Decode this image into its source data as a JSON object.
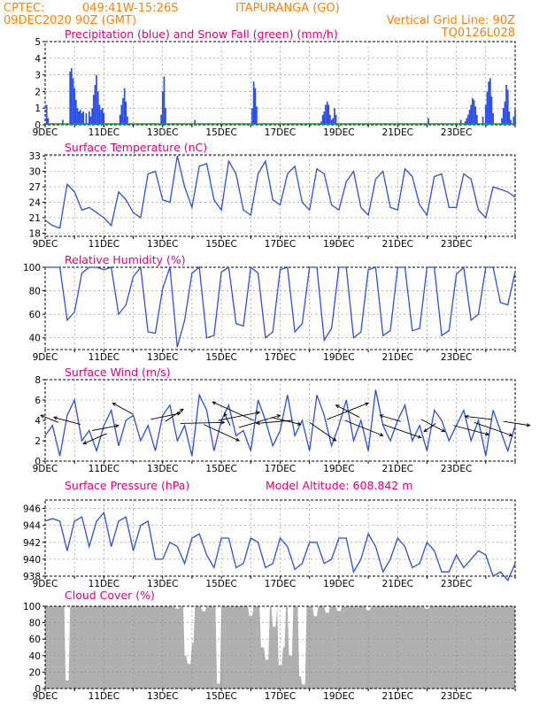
{
  "header": {
    "source": "CPTEC:",
    "coords": "049:41W-15:26S",
    "location": "ITAPURANGA (GO)",
    "run": "09DEC2020 90Z (GMT)",
    "grid_note": "Vertical Grid Line: 90Z",
    "model_code": "TQ0126L028"
  },
  "colors": {
    "header": "#ff8000",
    "title": "#e0007a",
    "line": "#2a4ee6",
    "snow": "#1aa01a",
    "cloud": "#b0b0b0",
    "arrow": "#000000"
  },
  "x_labels": [
    "9DEC",
    "11DEC",
    "13DEC",
    "15DEC",
    "17DEC",
    "19DEC",
    "21DEC",
    "23DEC"
  ],
  "chart_data": [
    {
      "type": "bar",
      "title": "Precipitation (blue) and Snow Fall (green) (mm/h)",
      "ylim": [
        0,
        5
      ],
      "yticks": [
        "0",
        "1",
        "2",
        "3",
        "4",
        "5"
      ],
      "x_days": [
        0,
        16
      ],
      "series": [
        {
          "name": "Precipitation",
          "color": "#2a4ee6",
          "points": [
            [
              0.05,
              1.2
            ],
            [
              0.1,
              0.4
            ],
            [
              0.6,
              0.3
            ],
            [
              0.85,
              3.2
            ],
            [
              0.9,
              3.4
            ],
            [
              0.95,
              2.8
            ],
            [
              1.0,
              2.2
            ],
            [
              1.05,
              1.5
            ],
            [
              1.1,
              1.0
            ],
            [
              1.15,
              0.8
            ],
            [
              1.2,
              0.9
            ],
            [
              1.25,
              0.7
            ],
            [
              1.3,
              0.8
            ],
            [
              1.4,
              0.7
            ],
            [
              1.5,
              0.8
            ],
            [
              1.55,
              0.5
            ],
            [
              1.6,
              1.0
            ],
            [
              1.65,
              1.8
            ],
            [
              1.7,
              2.4
            ],
            [
              1.75,
              3.0
            ],
            [
              1.8,
              2.0
            ],
            [
              1.85,
              1.2
            ],
            [
              1.9,
              0.9
            ],
            [
              1.95,
              1.0
            ],
            [
              2.0,
              0.7
            ],
            [
              2.55,
              0.6
            ],
            [
              2.6,
              1.2
            ],
            [
              2.65,
              1.6
            ],
            [
              2.7,
              2.2
            ],
            [
              2.75,
              1.4
            ],
            [
              2.8,
              0.5
            ],
            [
              3.95,
              0.6
            ],
            [
              4.0,
              2.0
            ],
            [
              4.05,
              2.9
            ],
            [
              4.1,
              1.0
            ],
            [
              5.1,
              0.3
            ],
            [
              7.05,
              1.0
            ],
            [
              7.1,
              2.6
            ],
            [
              7.15,
              2.2
            ],
            [
              7.2,
              1.1
            ],
            [
              9.4,
              0.2
            ],
            [
              9.45,
              0.6
            ],
            [
              9.5,
              0.8
            ],
            [
              9.55,
              1.2
            ],
            [
              9.6,
              1.4
            ],
            [
              9.65,
              1.2
            ],
            [
              9.7,
              0.6
            ],
            [
              9.75,
              0.3
            ],
            [
              9.8,
              0.4
            ],
            [
              9.85,
              1.0
            ],
            [
              9.9,
              0.6
            ],
            [
              13.05,
              0.4
            ],
            [
              14.15,
              0.3
            ],
            [
              14.3,
              0.2
            ],
            [
              14.35,
              0.4
            ],
            [
              14.4,
              0.6
            ],
            [
              14.45,
              0.9
            ],
            [
              14.5,
              1.2
            ],
            [
              14.55,
              1.6
            ],
            [
              14.6,
              1.5
            ],
            [
              14.65,
              1.1
            ],
            [
              14.7,
              0.6
            ],
            [
              14.9,
              0.5
            ],
            [
              15.0,
              1.2
            ],
            [
              15.05,
              2.0
            ],
            [
              15.1,
              2.6
            ],
            [
              15.15,
              2.8
            ],
            [
              15.2,
              1.7
            ],
            [
              15.25,
              0.7
            ],
            [
              15.55,
              0.4
            ],
            [
              15.6,
              1.0
            ],
            [
              15.65,
              1.4
            ],
            [
              15.7,
              2.4
            ],
            [
              15.75,
              2.1
            ],
            [
              15.8,
              0.8
            ],
            [
              15.85,
              0.3
            ],
            [
              15.95,
              0.5
            ],
            [
              16.0,
              0.9
            ]
          ]
        },
        {
          "name": "Snow Fall",
          "color": "#1aa01a",
          "points": [
            [
              0,
              0
            ],
            [
              16,
              0
            ]
          ]
        }
      ]
    },
    {
      "type": "line",
      "title": "Surface Temperature (nC)",
      "ylim": [
        17.4,
        33.2
      ],
      "yticks": [
        "18",
        "21",
        "24",
        "27",
        "30",
        "33"
      ],
      "ytick_values": [
        18,
        21,
        24,
        27,
        30,
        33
      ],
      "x": [
        0,
        0.25,
        0.5,
        0.75,
        1,
        1.25,
        1.5,
        1.75,
        2,
        2.25,
        2.5,
        2.75,
        3,
        3.25,
        3.5,
        3.75,
        4,
        4.25,
        4.5,
        4.75,
        5,
        5.25,
        5.5,
        5.75,
        6,
        6.25,
        6.5,
        6.75,
        7,
        7.25,
        7.5,
        7.75,
        8,
        8.25,
        8.5,
        8.75,
        9,
        9.25,
        9.5,
        9.75,
        10,
        10.25,
        10.5,
        10.75,
        11,
        11.25,
        11.5,
        11.75,
        12,
        12.25,
        12.5,
        12.75,
        13,
        13.25,
        13.5,
        13.75,
        14,
        14.25,
        14.5,
        14.75,
        15,
        15.25,
        15.5,
        15.75,
        16
      ],
      "values": [
        20.5,
        19.5,
        19.0,
        27.5,
        26.0,
        22.5,
        23.0,
        22.0,
        21.0,
        19.5,
        26.0,
        24.5,
        22.0,
        21.0,
        29.5,
        30.0,
        24.5,
        24.0,
        33.0,
        27.0,
        23.0,
        31.0,
        31.5,
        24.5,
        22.5,
        32.0,
        29.5,
        22.5,
        21.5,
        29.5,
        32.0,
        24.5,
        23.5,
        29.5,
        31.0,
        24.0,
        22.5,
        30.5,
        29.5,
        23.5,
        22.5,
        28.0,
        30.0,
        23.0,
        21.5,
        28.5,
        30.0,
        23.0,
        22.5,
        30.5,
        29.0,
        23.5,
        21.5,
        29.0,
        29.5,
        23.0,
        23.0,
        29.5,
        28.5,
        22.5,
        21.0,
        27.0,
        26.5,
        26.0,
        25.0
      ]
    },
    {
      "type": "line",
      "title": "Relative Humidity (%)",
      "ylim": [
        30,
        100
      ],
      "yticks": [
        "40",
        "60",
        "80",
        "100"
      ],
      "ytick_values": [
        40,
        60,
        80,
        100
      ],
      "x": [
        0,
        0.25,
        0.5,
        0.75,
        1,
        1.25,
        1.5,
        1.75,
        2,
        2.25,
        2.5,
        2.75,
        3,
        3.25,
        3.5,
        3.75,
        4,
        4.25,
        4.5,
        4.75,
        5,
        5.25,
        5.5,
        5.75,
        6,
        6.25,
        6.5,
        6.75,
        7,
        7.25,
        7.5,
        7.75,
        8,
        8.25,
        8.5,
        8.75,
        9,
        9.25,
        9.5,
        9.75,
        10,
        10.25,
        10.5,
        10.75,
        11,
        11.25,
        11.5,
        11.75,
        12,
        12.25,
        12.5,
        12.75,
        13,
        13.25,
        13.5,
        13.75,
        14,
        14.25,
        14.5,
        14.75,
        15,
        15.25,
        15.5,
        15.75,
        16
      ],
      "values": [
        100,
        100,
        100,
        55,
        62,
        95,
        100,
        100,
        98,
        100,
        60,
        68,
        92,
        100,
        45,
        44,
        82,
        100,
        32,
        55,
        95,
        100,
        40,
        42,
        96,
        100,
        52,
        50,
        100,
        95,
        40,
        45,
        98,
        100,
        45,
        52,
        100,
        100,
        38,
        48,
        100,
        100,
        40,
        45,
        98,
        100,
        42,
        46,
        100,
        100,
        46,
        48,
        100,
        100,
        42,
        46,
        94,
        100,
        55,
        60,
        100,
        100,
        70,
        68,
        96
      ]
    },
    {
      "type": "line",
      "title": "Surface Wind (m/s)",
      "ylim": [
        0,
        8
      ],
      "yticks": [
        "0",
        "2",
        "4",
        "6",
        "8"
      ],
      "ytick_values": [
        0,
        2,
        4,
        6,
        8
      ],
      "x": [
        0,
        0.25,
        0.5,
        0.75,
        1,
        1.25,
        1.5,
        1.75,
        2,
        2.25,
        2.5,
        2.75,
        3,
        3.25,
        3.5,
        3.75,
        4,
        4.25,
        4.5,
        4.75,
        5,
        5.25,
        5.5,
        5.75,
        6,
        6.25,
        6.5,
        6.75,
        7,
        7.25,
        7.5,
        7.75,
        8,
        8.25,
        8.5,
        8.75,
        9,
        9.25,
        9.5,
        9.75,
        10,
        10.25,
        10.5,
        10.75,
        11,
        11.25,
        11.5,
        11.75,
        12,
        12.25,
        12.5,
        12.75,
        13,
        13.25,
        13.5,
        13.75,
        14,
        14.25,
        14.5,
        14.75,
        15,
        15.25,
        15.5,
        15.75,
        16
      ],
      "values": [
        2.5,
        3.5,
        0.5,
        4.5,
        6.0,
        2.0,
        3.0,
        1.0,
        3.5,
        5.0,
        1.5,
        4.0,
        4.5,
        2.0,
        3.5,
        1.0,
        4.5,
        5.5,
        2.0,
        3.5,
        0.5,
        6.5,
        5.0,
        1.0,
        4.0,
        5.5,
        2.5,
        3.0,
        1.0,
        6.0,
        4.0,
        1.5,
        3.0,
        6.5,
        2.5,
        4.0,
        1.0,
        6.5,
        4.5,
        1.5,
        3.5,
        6.0,
        2.0,
        4.0,
        1.0,
        7.0,
        3.5,
        2.0,
        4.0,
        5.5,
        2.0,
        3.5,
        1.0,
        5.0,
        4.0,
        2.0,
        3.5,
        5.0,
        2.0,
        4.0,
        0.5,
        5.0,
        3.0,
        1.0,
        3.5
      ],
      "arrows": [
        [
          0.45,
          3.8,
          -0.6,
          0.7
        ],
        [
          1.2,
          3.6,
          -0.9,
          0.7
        ],
        [
          1.6,
          3.0,
          0.9,
          0.5
        ],
        [
          2.1,
          2.7,
          -0.8,
          -1.0
        ],
        [
          3.0,
          4.6,
          -0.7,
          1.1
        ],
        [
          3.6,
          4.1,
          1.0,
          0.6
        ],
        [
          4.1,
          3.9,
          0.6,
          1.2
        ],
        [
          4.6,
          3.7,
          1.5,
          0.1
        ],
        [
          5.4,
          3.6,
          1.2,
          -1.6
        ],
        [
          5.9,
          4.0,
          1.4,
          0.8
        ],
        [
          6.3,
          3.5,
          -0.2,
          1.2
        ],
        [
          6.6,
          3.3,
          1.4,
          1.2
        ],
        [
          7.1,
          4.0,
          -1.4,
          1.8
        ],
        [
          7.7,
          4.3,
          1.0,
          -0.7
        ],
        [
          8.4,
          4.0,
          -1.2,
          -0.3
        ],
        [
          9.0,
          3.8,
          0.9,
          -1.8
        ],
        [
          9.6,
          4.1,
          1.4,
          1.6
        ],
        [
          10.2,
          4.0,
          1.3,
          -1.5
        ],
        [
          10.7,
          4.3,
          -0.8,
          1.2
        ],
        [
          11.5,
          3.6,
          1.3,
          -1.3
        ],
        [
          12.1,
          3.9,
          -0.7,
          0.6
        ],
        [
          12.8,
          4.1,
          0.8,
          -1.2
        ],
        [
          13.3,
          3.7,
          -0.4,
          -0.8
        ],
        [
          13.9,
          3.5,
          1.2,
          -0.9
        ],
        [
          14.6,
          3.8,
          1.3,
          -1.3
        ],
        [
          15.2,
          4.1,
          -0.9,
          0.3
        ],
        [
          15.6,
          3.9,
          0.9,
          -0.4
        ]
      ]
    },
    {
      "type": "line",
      "title": "Surface Pressure (hPa)",
      "annotation": "Model Altitude: 608.842  m",
      "ylim": [
        938,
        947
      ],
      "yticks": [
        "938",
        "940",
        "942",
        "944",
        "946"
      ],
      "ytick_values": [
        938,
        940,
        942,
        944,
        946
      ],
      "x": [
        0,
        0.25,
        0.5,
        0.75,
        1,
        1.25,
        1.5,
        1.75,
        2,
        2.25,
        2.5,
        2.75,
        3,
        3.25,
        3.5,
        3.75,
        4,
        4.25,
        4.5,
        4.75,
        5,
        5.25,
        5.5,
        5.75,
        6,
        6.25,
        6.5,
        6.75,
        7,
        7.25,
        7.5,
        7.75,
        8,
        8.25,
        8.5,
        8.75,
        9,
        9.25,
        9.5,
        9.75,
        10,
        10.25,
        10.5,
        10.75,
        11,
        11.25,
        11.5,
        11.75,
        12,
        12.25,
        12.5,
        12.75,
        13,
        13.25,
        13.5,
        13.75,
        14,
        14.25,
        14.5,
        14.75,
        15,
        15.25,
        15.5,
        15.75,
        16
      ],
      "values": [
        944.5,
        944.8,
        944.5,
        941.0,
        944.5,
        945.0,
        941.5,
        944.5,
        945.5,
        941.5,
        944.5,
        945.0,
        941.0,
        944.0,
        944.5,
        940.0,
        940.0,
        942.0,
        941.5,
        939.5,
        942.5,
        943.0,
        940.5,
        939.0,
        942.5,
        942.5,
        939.0,
        939.5,
        942.5,
        942.0,
        939.0,
        939.5,
        942.5,
        941.5,
        938.8,
        939.5,
        942.0,
        942.0,
        939.5,
        940.0,
        942.5,
        942.5,
        938.5,
        940.0,
        943.0,
        941.5,
        938.5,
        940.0,
        942.5,
        941.5,
        939.0,
        939.5,
        942.0,
        941.0,
        938.5,
        938.5,
        940.5,
        939.0,
        940.0,
        941.0,
        940.5,
        938.0,
        938.5,
        937.5,
        939.5
      ]
    },
    {
      "type": "bar",
      "title": "Cloud Cover (%)",
      "ylim": [
        0,
        100
      ],
      "yticks": [
        "0",
        "20",
        "40",
        "60",
        "80",
        "100"
      ],
      "ytick_values": [
        0,
        20,
        40,
        60,
        80,
        100
      ],
      "baseline": 100,
      "dips": [
        [
          0.75,
          10
        ],
        [
          4.5,
          97
        ],
        [
          4.8,
          40
        ],
        [
          4.9,
          30
        ],
        [
          5.0,
          55
        ],
        [
          5.4,
          94
        ],
        [
          5.9,
          6
        ],
        [
          7.0,
          88
        ],
        [
          7.4,
          50
        ],
        [
          7.55,
          35
        ],
        [
          7.8,
          75
        ],
        [
          8.0,
          28
        ],
        [
          8.1,
          50
        ],
        [
          8.35,
          40
        ],
        [
          8.7,
          15
        ],
        [
          8.8,
          5
        ],
        [
          9.2,
          88
        ],
        [
          9.6,
          92
        ],
        [
          10.0,
          94
        ],
        [
          11.0,
          95
        ],
        [
          13.0,
          97
        ]
      ]
    }
  ]
}
